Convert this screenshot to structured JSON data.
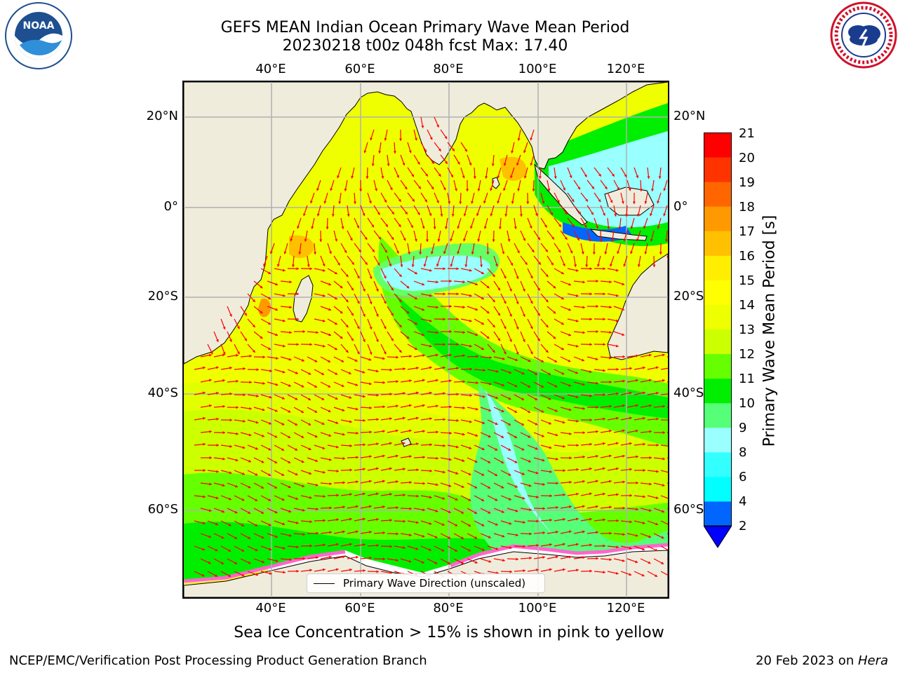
{
  "header": {
    "title_line1": "GEFS MEAN Indian Ocean Primary Wave Mean Period",
    "title_line2": "20230218 t00z 048h fcst   Max: 17.40"
  },
  "logos": {
    "noaa": {
      "icon": "noaa-logo",
      "text": "NOAA",
      "ring_text": "NATIONAL OCEANIC AND ATMOSPHERIC ADMINISTRATION • U.S. DEPARTMENT OF COMMERCE"
    },
    "nws": {
      "icon": "national-weather-service-logo",
      "ring_text": "NATIONAL WEATHER SERVICE"
    }
  },
  "map": {
    "region": "Indian Ocean",
    "lon_range": [
      20,
      130
    ],
    "lat_range": [
      -72,
      28
    ],
    "projection": "Mercator",
    "longitude_ticks": [
      "40°E",
      "60°E",
      "80°E",
      "100°E",
      "120°E"
    ],
    "latitude_ticks": [
      "20°N",
      "0°",
      "20°S",
      "40°S",
      "60°S"
    ],
    "grid": true,
    "land_color": "#efecdc",
    "vector_color": "#ff0000",
    "legend": {
      "label": "Primary Wave Direction (unscaled)",
      "placement": "bottom-center"
    }
  },
  "colorbar": {
    "label": "Primary Wave Mean Period [s]",
    "ticks": [
      "2",
      "4",
      "6",
      "8",
      "9",
      "10",
      "11",
      "12",
      "13",
      "14",
      "15",
      "16",
      "17",
      "18",
      "19",
      "20",
      "21"
    ],
    "under_color": "#0000ff",
    "colors": [
      "#0066ff",
      "#00ffff",
      "#33ffff",
      "#99ffff",
      "#55ff77",
      "#00ee00",
      "#66ff00",
      "#ccff00",
      "#eeff00",
      "#ffff00",
      "#ffee00",
      "#ffc000",
      "#ff9900",
      "#ff6600",
      "#ff3300",
      "#ff0000"
    ]
  },
  "footer": {
    "ice_note": "Sea Ice Concentration > 15% is shown in pink to yellow",
    "left": "NCEP/EMC/Verification Post Processing Product Generation Branch",
    "right_date": "20 Feb 2023 on ",
    "right_machine": "Hera"
  }
}
